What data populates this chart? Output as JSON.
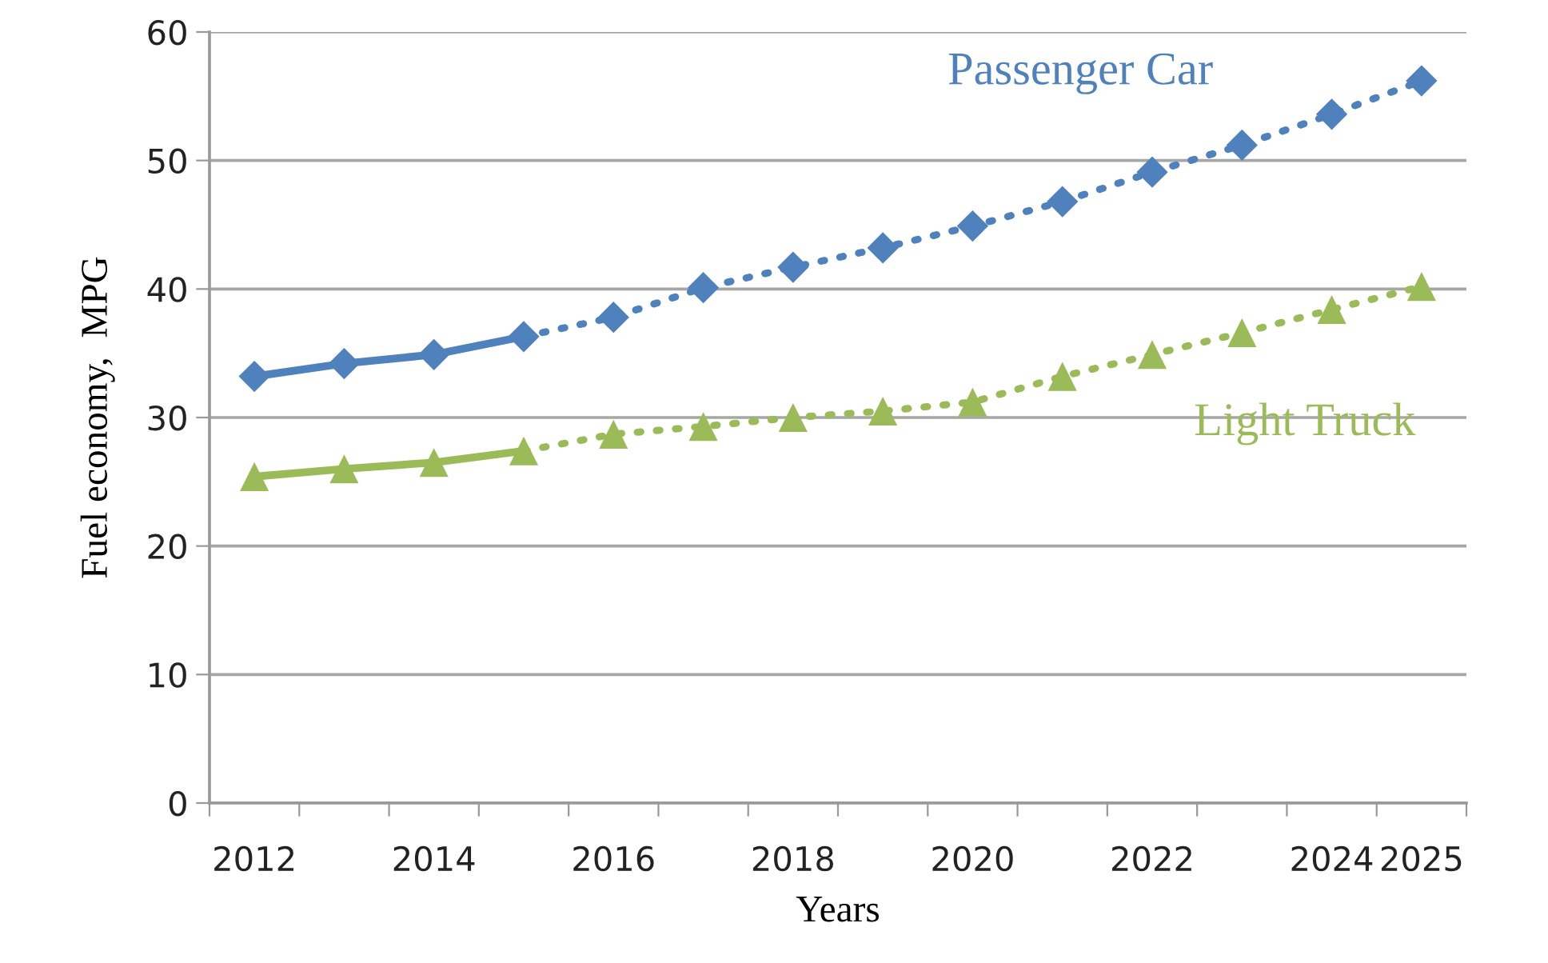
{
  "chart_data": {
    "type": "line",
    "xlabel": "Years",
    "ylabel": "Fuel economy,  MPG",
    "categories": [
      "2012",
      null,
      "2014",
      null,
      "2016",
      null,
      "2018",
      null,
      "2020",
      null,
      "2022",
      null,
      "2024",
      "2025"
    ],
    "series": [
      {
        "color": "#4f81bd",
        "marker": "diamond",
        "line_style": "solid",
        "values": [
          33.2,
          34.2,
          34.9,
          36.3,
          null,
          null,
          null,
          null,
          null,
          null,
          null,
          null,
          null,
          null
        ]
      },
      {
        "name": "Passenger Car",
        "color": "#4f81bd",
        "marker": "diamond",
        "line_style": "dotted",
        "values": [
          null,
          null,
          null,
          36.3,
          37.8,
          40.1,
          41.7,
          43.2,
          44.9,
          46.8,
          49.1,
          51.2,
          53.6,
          56.2
        ]
      },
      {
        "color": "#9bbb59",
        "marker": "triangle",
        "line_style": "solid",
        "values": [
          25.4,
          26.0,
          26.5,
          27.4,
          null,
          null,
          null,
          null,
          null,
          null,
          null,
          null,
          null,
          null
        ]
      },
      {
        "name": "Light Truck",
        "color": "#9bbb59",
        "marker": "triangle",
        "line_style": "dotted",
        "values": [
          null,
          null,
          null,
          27.4,
          28.7,
          29.3,
          30.0,
          30.5,
          31.2,
          33.2,
          34.9,
          36.6,
          38.4,
          40.2
        ]
      }
    ],
    "ylim": [
      0,
      60
    ],
    "yticks": [
      0,
      10,
      20,
      30,
      40,
      50,
      60
    ],
    "grid": "y"
  }
}
